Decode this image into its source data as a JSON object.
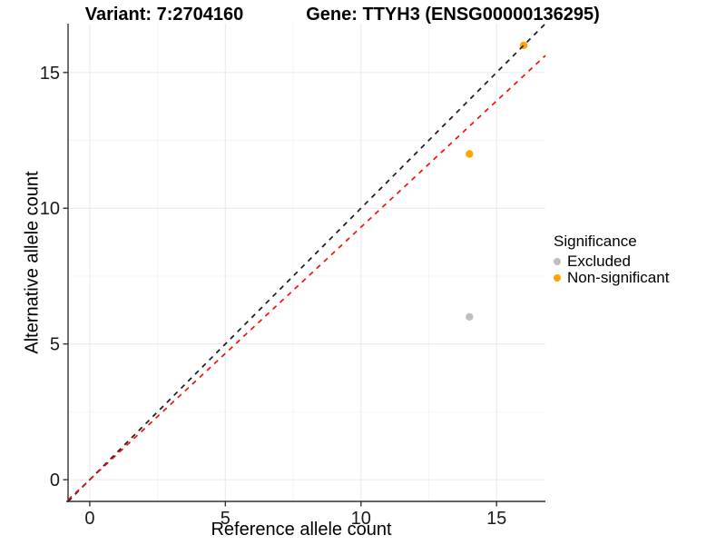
{
  "chart_data": {
    "type": "scatter",
    "title_left": "Variant: 7:2704160",
    "title_right": "Gene: TTYH3 (ENSG00000136295)",
    "xlabel": "Reference allele count",
    "ylabel": "Alternative allele count",
    "xlim": [
      -0.8,
      16.8
    ],
    "ylim": [
      -0.8,
      16.8
    ],
    "x_ticks": [
      0,
      5,
      10,
      15
    ],
    "y_ticks": [
      0,
      5,
      10,
      15
    ],
    "x_minor": [
      2.5,
      7.5,
      12.5
    ],
    "y_minor": [
      2.5,
      7.5,
      12.5
    ],
    "grid": true,
    "legend_position": "right",
    "points": [
      {
        "x": 16,
        "y": 16,
        "significance": "Non-significant",
        "color": "#FFA500"
      },
      {
        "x": 14,
        "y": 12,
        "significance": "Non-significant",
        "color": "#FFA500"
      },
      {
        "x": 14,
        "y": 6,
        "significance": "Excluded",
        "color": "#BEBEBE"
      }
    ],
    "lines": [
      {
        "name": "identity-line",
        "slope": 1.0,
        "intercept": 0,
        "color": "#1a1a1a",
        "style": "dashed"
      },
      {
        "name": "expected-ratio-line",
        "slope": 0.93,
        "intercept": 0,
        "color": "#F50F0F",
        "style": "dashed"
      }
    ],
    "legend": {
      "title": "Significance",
      "items": [
        {
          "label": "Excluded",
          "color": "#BEBEBE"
        },
        {
          "label": "Non-significant",
          "color": "#FFA500"
        }
      ]
    },
    "colors": {
      "background": "#FFFFFF",
      "grid_major": "#ECECEC",
      "grid_minor": "#F4F4F4",
      "axis": "#333333",
      "tick_text": "#1a1a1a"
    }
  }
}
